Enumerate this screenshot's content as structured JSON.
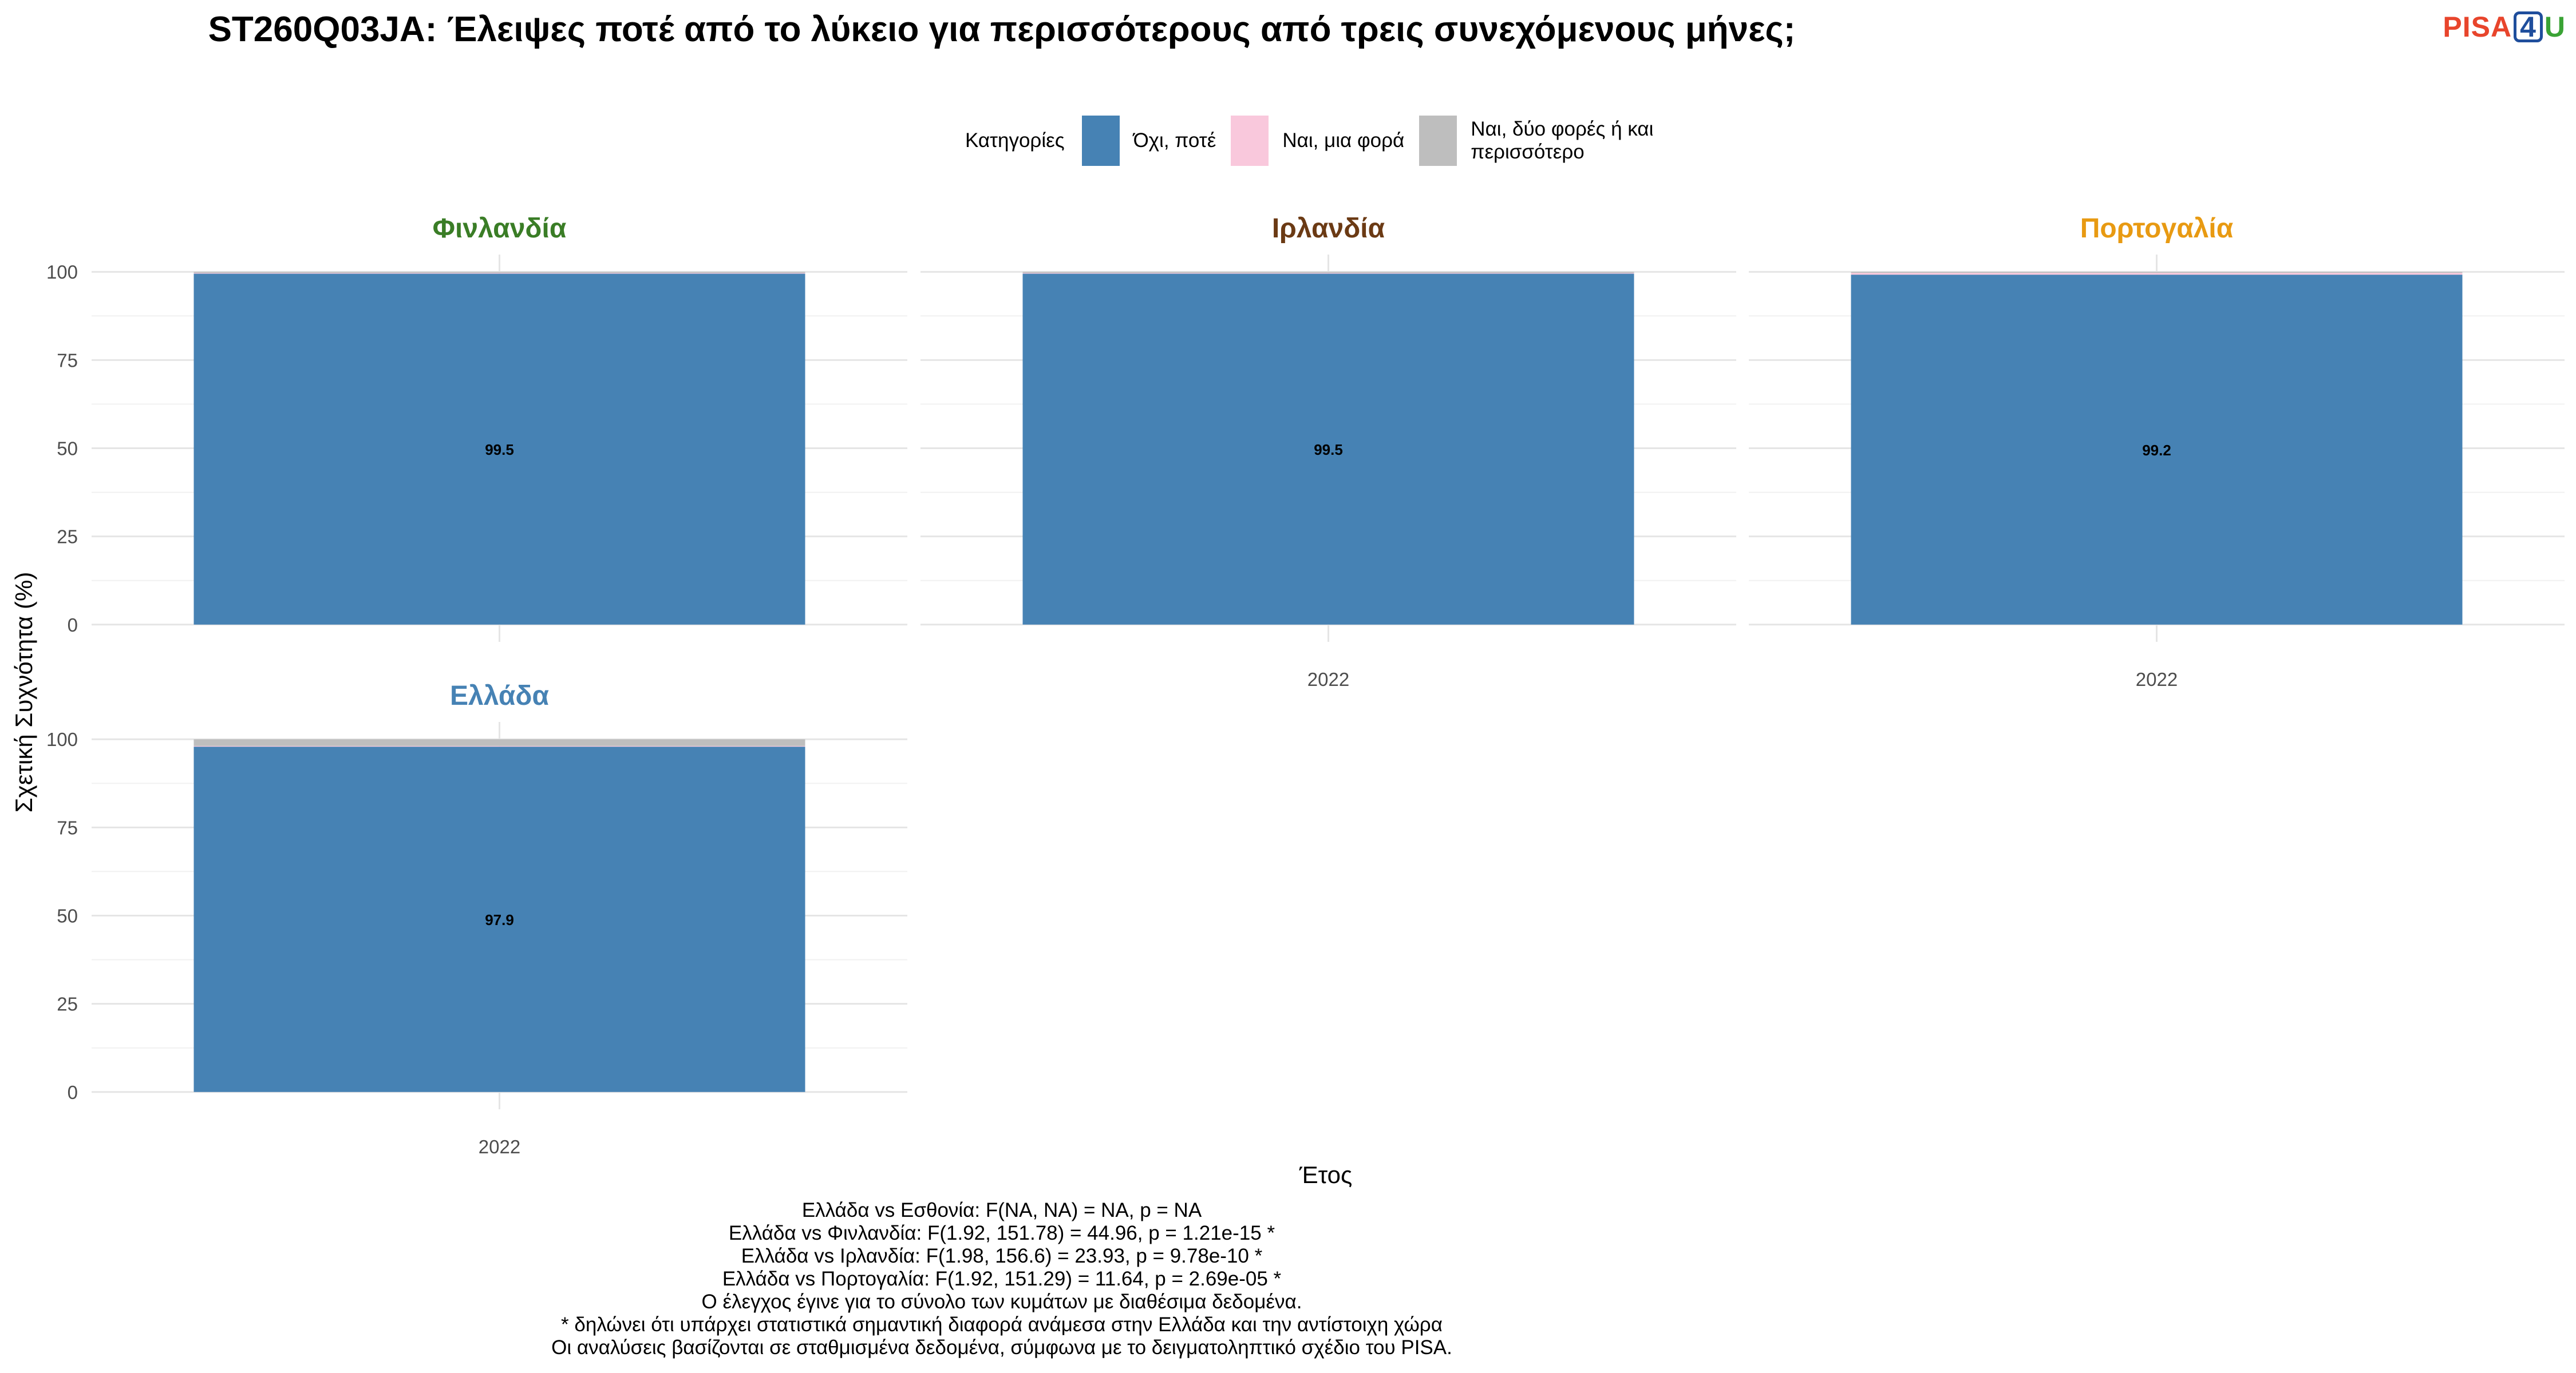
{
  "title": "ST260Q03JA: Έλειψες ποτέ από το λύκειο για περισσότερους από τρεις συνεχόμενους μήνες;",
  "logo": {
    "part1": "PISA",
    "part2": "4",
    "part3": "U"
  },
  "legend": {
    "title": "Κατηγορίες",
    "items": [
      {
        "label": "Όχι, ποτέ",
        "color": "#4682b4"
      },
      {
        "label": "Ναι, μια φορά",
        "color": "#f9c8dc"
      },
      {
        "label": "Ναι, δύο φορές ή και περισσότερο",
        "color": "#bebebe"
      }
    ]
  },
  "chart_data": {
    "type": "bar",
    "stacked": true,
    "xlabel": "Έτος",
    "ylabel": "Σχετική Συχνότητα (%)",
    "ylim": [
      0,
      100
    ],
    "yticks": [
      0,
      25,
      50,
      75,
      100
    ],
    "grid": true,
    "legend_position": "top",
    "series_names": [
      "Όχι, ποτέ",
      "Ναι, μια φορά",
      "Ναι, δύο φορές ή και περισσότερο"
    ],
    "series_colors": [
      "#4682b4",
      "#f9c8dc",
      "#bebebe"
    ],
    "panels": [
      {
        "name": "Φινλανδία",
        "color": "#3a7d26",
        "category": "2022",
        "values": [
          99.5,
          0.2,
          0.3
        ],
        "label": "99.5",
        "show_xtick": false
      },
      {
        "name": "Ιρλανδία",
        "color": "#6b3a14",
        "category": "2022",
        "values": [
          99.5,
          0.2,
          0.3
        ],
        "label": "99.5",
        "show_xtick": true
      },
      {
        "name": "Πορτογαλία",
        "color": "#e89a12",
        "category": "2022",
        "values": [
          99.2,
          0.5,
          0.3
        ],
        "label": "99.2",
        "show_xtick": true
      },
      {
        "name": "Ελλάδα",
        "color": "#4682b4",
        "category": "2022",
        "values": [
          97.9,
          0.2,
          1.9
        ],
        "label": "97.9",
        "show_xtick": true
      }
    ]
  },
  "footer": [
    "Ελλάδα vs Εσθονία: F(NA, NA) = NA, p = NA",
    "Ελλάδα vs Φινλανδία: F(1.92, 151.78) = 44.96, p = 1.21e-15 *",
    "Ελλάδα vs Ιρλανδία: F(1.98, 156.6) = 23.93, p = 9.78e-10 *",
    "Ελλάδα vs Πορτογαλία: F(1.92, 151.29) = 11.64, p = 2.69e-05 *",
    "Ο έλεγχος έγινε για το σύνολο των κυμάτων με διαθέσιμα δεδομένα.",
    "* δηλώνει ότι υπάρχει στατιστικά σημαντική διαφορά ανάμεσα στην Ελλάδα και την αντίστοιχη χώρα",
    "Οι αναλύσεις βασίζονται σε σταθμισμένα δεδομένα, σύμφωνα με το δειγματοληπτικό σχέδιο του PISA."
  ]
}
